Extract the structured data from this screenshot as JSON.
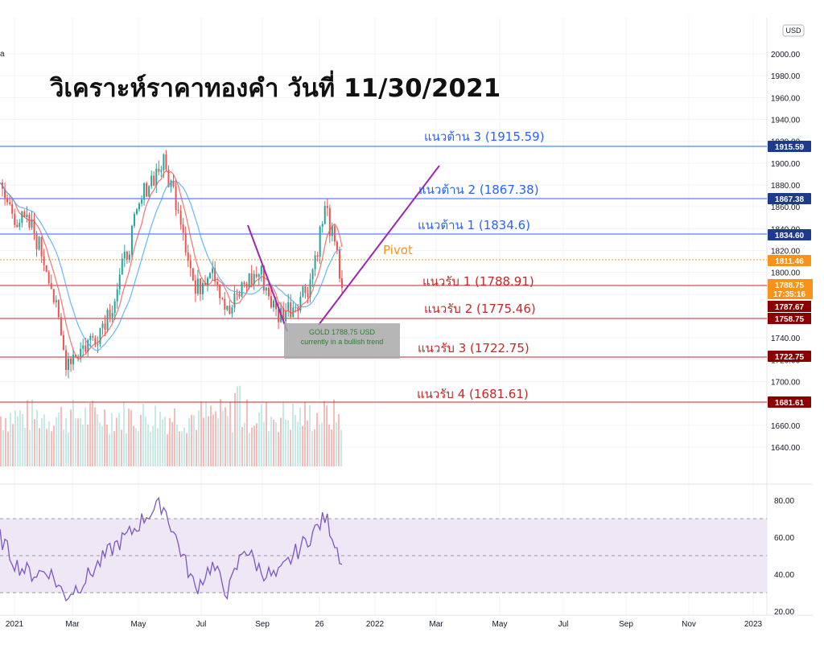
{
  "header": {
    "title": "วิเคราะห์ราคาทองคำ วันที่ 11/30/2021",
    "symbol_fragment": "a",
    "currency_button": "USD"
  },
  "colors": {
    "resistance": "#2962ff",
    "pivot": "#f7931a",
    "support": "#c62828",
    "support_dark": "#8b0000",
    "trendline": "#9c27b0",
    "rsi_line": "#7e57c2",
    "rsi_band": "#ede7f6",
    "candle_up": "#26a69a",
    "candle_down": "#ef5350",
    "volume": "#f4a09c"
  },
  "annotation": {
    "line1": "GOLD 1788.75 USD",
    "line2": "currently in a bullish trend"
  },
  "price_tags": {
    "last_price": "1788.75",
    "countdown": "17:35:16",
    "support_tag_a": "1787.67",
    "support_tag_b": "1758.75"
  },
  "chart_data": [
    {
      "type": "line",
      "title": "วิเคราะห์ราคาทองคำ วันที่ 11/30/2021",
      "x_tick_labels": [
        "2021",
        "Mar",
        "May",
        "Jul",
        "Sep",
        "26",
        "2022",
        "Mar",
        "May",
        "Jul",
        "Sep",
        "Nov",
        "2023"
      ],
      "y_tick_labels": [
        "2000.00",
        "1980.00",
        "1960.00",
        "1940.00",
        "1920.00",
        "1900.00",
        "1880.00",
        "1860.00",
        "1840.00",
        "1820.00",
        "1800.00",
        "1780.00",
        "1760.00",
        "1740.00",
        "1720.00",
        "1700.00",
        "1680.00",
        "1660.00",
        "1640.00"
      ],
      "ylim": [
        1630,
        2020
      ],
      "levels": [
        {
          "name": "แนวต้าน 3",
          "label": "แนวต้าน 3 (1915.59)",
          "value": 1915.59,
          "tag": "1915.59",
          "kind": "resistance"
        },
        {
          "name": "แนวต้าน 2",
          "label": "แนวต้าน 2 (1867.38)",
          "value": 1867.38,
          "tag": "1867.38",
          "kind": "resistance"
        },
        {
          "name": "แนวต้าน 1",
          "label": "แนวต้าน 1 (1834.6)",
          "value": 1834.6,
          "tag": "1834.60",
          "kind": "resistance"
        },
        {
          "name": "Pivot",
          "label": "Pivot",
          "value": 1811.46,
          "tag": "1811.46",
          "kind": "pivot"
        },
        {
          "name": "แนวรับ 1",
          "label": "แนวรับ 1 (1788.91)",
          "value": 1788.91,
          "tag": "1788.75",
          "kind": "support"
        },
        {
          "name": "แนวรับ 2",
          "label": "แนวรับ 2 (1775.46)",
          "value": 1775.46,
          "tag": "1787.67",
          "kind": "support"
        },
        {
          "name": "แนวรับ 3",
          "label": "แนวรับ 3 (1722.75)",
          "value": 1722.75,
          "tag": "1722.75",
          "kind": "support"
        },
        {
          "name": "แนวรับ 4",
          "label": "แนวรับ 4 (1681.61)",
          "value": 1681.61,
          "tag": "1681.61",
          "kind": "support"
        }
      ],
      "x": [
        "2021-01",
        "2021-01",
        "2021-02",
        "2021-02",
        "2021-03",
        "2021-03",
        "2021-04",
        "2021-04",
        "2021-05",
        "2021-05",
        "2021-06",
        "2021-06",
        "2021-07",
        "2021-07",
        "2021-08",
        "2021-08",
        "2021-09",
        "2021-09",
        "2021-10",
        "2021-10",
        "2021-11",
        "2021-11"
      ],
      "series": [
        {
          "values": [
            1875,
            1850,
            1840,
            1800,
            1720,
            1730,
            1745,
            1775,
            1830,
            1880,
            1900,
            1860,
            1780,
            1810,
            1760,
            1790,
            1800,
            1760,
            1770,
            1790,
            1860,
            1790
          ]
        }
      ]
    },
    {
      "type": "line",
      "y_tick_labels": [
        "80.00",
        "60.00",
        "40.00",
        "20.00"
      ],
      "ylim": [
        20,
        85
      ],
      "bands": [
        70,
        30
      ],
      "midline": 50,
      "x": [
        "2021-01",
        "2021-01",
        "2021-02",
        "2021-02",
        "2021-03",
        "2021-03",
        "2021-04",
        "2021-04",
        "2021-05",
        "2021-05",
        "2021-06",
        "2021-06",
        "2021-07",
        "2021-07",
        "2021-08",
        "2021-08",
        "2021-09",
        "2021-09",
        "2021-10",
        "2021-10",
        "2021-11",
        "2021-11"
      ],
      "series": [
        {
          "values": [
            60,
            45,
            40,
            42,
            28,
            35,
            45,
            55,
            62,
            72,
            78,
            55,
            32,
            45,
            30,
            55,
            42,
            38,
            50,
            60,
            71,
            47
          ]
        }
      ]
    }
  ]
}
